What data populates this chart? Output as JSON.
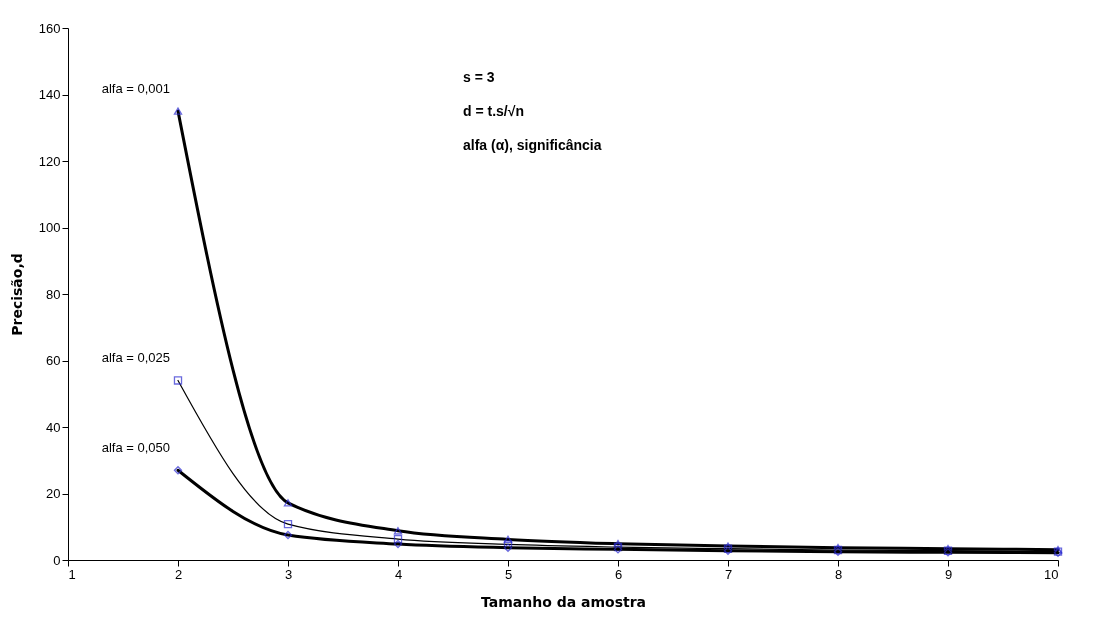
{
  "chart_data": {
    "type": "line",
    "xlabel": "Tamanho da amostra",
    "ylabel": "Precisão,d",
    "annotations": [
      "s = 3",
      "d = t.s/√n",
      "alfa (α), significância"
    ],
    "x": [
      2,
      3,
      4,
      5,
      6,
      7,
      8,
      9,
      10
    ],
    "series": [
      {
        "name": "alfa = 0,001",
        "color": "#2b2bd0",
        "marker": "triangle",
        "values": [
          135,
          17.2,
          8.8,
          6.2,
          4.9,
          4.2,
          3.7,
          3.4,
          3.1
        ]
      },
      {
        "name": "alfa = 0,025",
        "color": "#2b2bd0",
        "marker": "square",
        "values": [
          54,
          10.8,
          6.3,
          4.7,
          3.9,
          3.4,
          3.0,
          2.8,
          2.5
        ]
      },
      {
        "name": "alfa = 0,050",
        "color": "#2b2bd0",
        "marker": "diamond",
        "values": [
          27,
          7.5,
          4.8,
          3.7,
          3.2,
          2.8,
          2.5,
          2.3,
          2.2
        ]
      }
    ],
    "xlim": [
      1,
      10
    ],
    "xticks": [
      1,
      2,
      3,
      4,
      5,
      6,
      7,
      8,
      9,
      10
    ],
    "ylim": [
      0,
      160
    ],
    "yticks": [
      0,
      20,
      40,
      60,
      80,
      100,
      120,
      140,
      160
    ],
    "grid": false
  }
}
